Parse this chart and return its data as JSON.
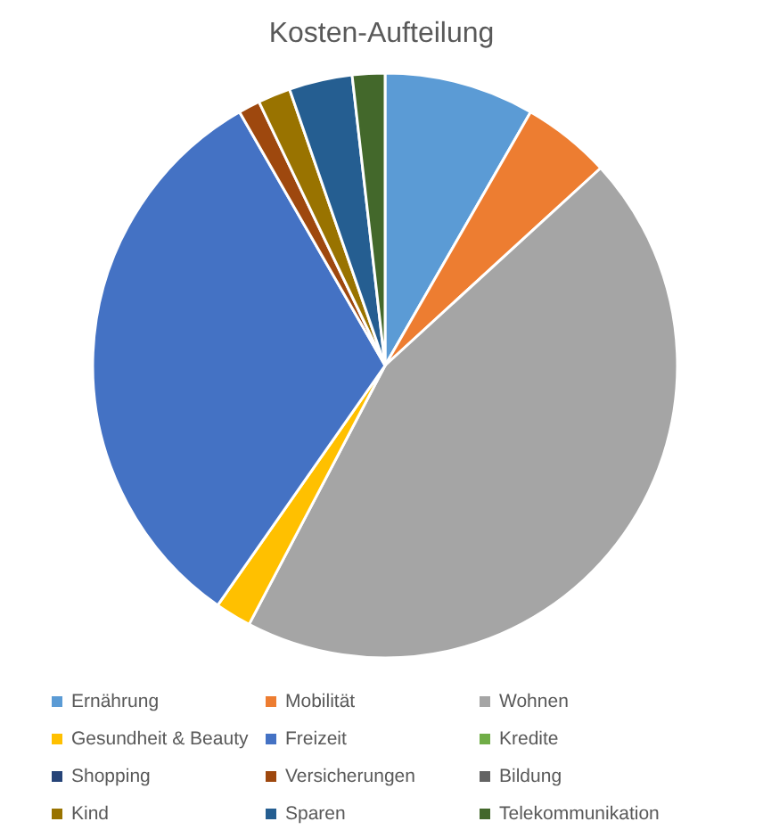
{
  "chart_data": {
    "type": "pie",
    "title": "Kosten-Aufteilung",
    "categories": [
      "Ernährung",
      "Mobilität",
      "Wohnen",
      "Gesundheit & Beauty",
      "Freizeit",
      "Kredite",
      "Shopping",
      "Versicherungen",
      "Bildung",
      "Kind",
      "Sparen",
      "Telekommunikation"
    ],
    "values": [
      8.3,
      4.9,
      44.5,
      2.0,
      32.0,
      0,
      0,
      1.2,
      0,
      1.8,
      3.5,
      1.8
    ],
    "colors": [
      "#5b9bd5",
      "#ed7d31",
      "#a5a5a5",
      "#ffc000",
      "#4472c4",
      "#70ad47",
      "#264478",
      "#9e480e",
      "#636363",
      "#997300",
      "#255e91",
      "#43682b"
    ],
    "legend": "bottom"
  }
}
